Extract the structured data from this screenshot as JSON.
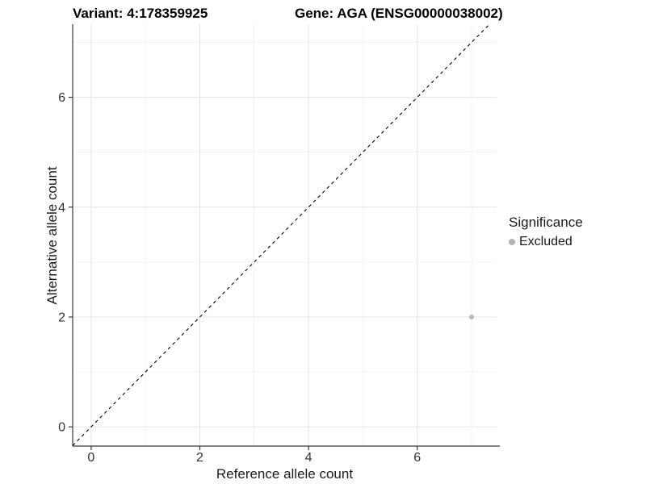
{
  "header": {
    "variant_title": "Variant: 4:178359925",
    "gene_title": "Gene: AGA (ENSG00000038002)"
  },
  "chart_data": {
    "type": "scatter",
    "title_left": "Variant: 4:178359925",
    "title_right": "Gene: AGA (ENSG00000038002)",
    "xlabel": "Reference allele count",
    "ylabel": "Alternative allele count",
    "xlim": [
      -0.34,
      7.46
    ],
    "ylim": [
      -0.35,
      7.33
    ],
    "x_ticks": [
      0,
      2,
      4,
      6
    ],
    "y_ticks": [
      0,
      2,
      4,
      6
    ],
    "x_minor_ticks": [
      1,
      3,
      5,
      7
    ],
    "y_minor_ticks": [
      1,
      3,
      5,
      7
    ],
    "grid": true,
    "points": [
      {
        "x": 7,
        "y": 2,
        "series": "Excluded"
      }
    ],
    "reference_line": {
      "kind": "identity",
      "slope": 1,
      "intercept": 0,
      "style": "dashed",
      "color": "#000000"
    },
    "legend": {
      "title": "Significance",
      "position": "right",
      "items": [
        {
          "label": "Excluded",
          "color": "#b3b3b3"
        }
      ]
    },
    "colors": {
      "point": "#b8b8b8",
      "grid_major": "#e4e4e4",
      "grid_minor": "#f2f2f2",
      "axis_line": "#383838",
      "tick_text": "#333333"
    }
  }
}
